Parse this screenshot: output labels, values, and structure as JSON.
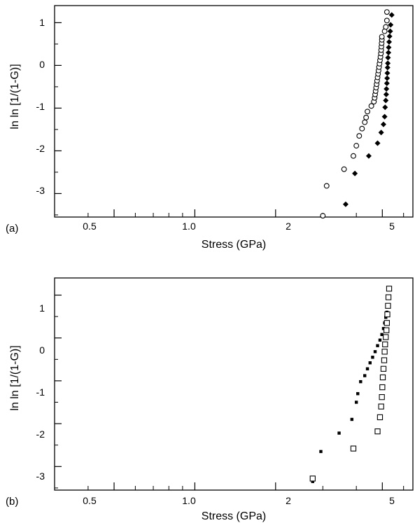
{
  "chart_data": [
    {
      "type": "scatter",
      "panel_label": "(a)",
      "xlabel": "Stress (GPa)",
      "ylabel": "ln ln [1/(1-G)]",
      "x_scale": "log",
      "xlim": [
        0.3,
        6.5
      ],
      "ylim": [
        -3.55,
        1.4
      ],
      "x_tick_labels": [
        "0.5",
        "1.0",
        "2",
        "5"
      ],
      "y_tick_labels": [
        "1",
        "0",
        "-1",
        "-2",
        "-3"
      ],
      "grid": false,
      "series": [
        {
          "marker": "open-circle",
          "color": "#000000",
          "points": [
            [
              3.0,
              -3.52
            ],
            [
              3.1,
              -2.82
            ],
            [
              3.6,
              -2.43
            ],
            [
              3.9,
              -2.12
            ],
            [
              4.0,
              -1.88
            ],
            [
              4.1,
              -1.65
            ],
            [
              4.2,
              -1.48
            ],
            [
              4.3,
              -1.33
            ],
            [
              4.35,
              -1.22
            ],
            [
              4.4,
              -1.08
            ],
            [
              4.55,
              -0.95
            ],
            [
              4.65,
              -0.85
            ],
            [
              4.68,
              -0.76
            ],
            [
              4.7,
              -0.68
            ],
            [
              4.72,
              -0.6
            ],
            [
              4.74,
              -0.52
            ],
            [
              4.76,
              -0.44
            ],
            [
              4.78,
              -0.36
            ],
            [
              4.8,
              -0.28
            ],
            [
              4.82,
              -0.2
            ],
            [
              4.84,
              -0.12
            ],
            [
              4.86,
              -0.04
            ],
            [
              4.88,
              0.04
            ],
            [
              4.9,
              0.12
            ],
            [
              4.92,
              0.2
            ],
            [
              4.94,
              0.28
            ],
            [
              4.95,
              0.36
            ],
            [
              4.96,
              0.44
            ],
            [
              4.97,
              0.52
            ],
            [
              4.98,
              0.6
            ],
            [
              4.98,
              0.67
            ],
            [
              5.1,
              0.8
            ],
            [
              5.15,
              0.9
            ],
            [
              5.2,
              1.05
            ],
            [
              5.2,
              1.25
            ]
          ]
        },
        {
          "marker": "filled-diamond",
          "color": "#000000",
          "points": [
            [
              3.65,
              -3.25
            ],
            [
              3.95,
              -2.53
            ],
            [
              4.45,
              -2.12
            ],
            [
              4.8,
              -1.82
            ],
            [
              4.95,
              -1.57
            ],
            [
              5.05,
              -1.38
            ],
            [
              5.1,
              -1.2
            ],
            [
              5.12,
              -0.98
            ],
            [
              5.15,
              -0.82
            ],
            [
              5.17,
              -0.68
            ],
            [
              5.18,
              -0.55
            ],
            [
              5.2,
              -0.42
            ],
            [
              5.21,
              -0.3
            ],
            [
              5.22,
              -0.18
            ],
            [
              5.23,
              -0.05
            ],
            [
              5.24,
              0.05
            ],
            [
              5.25,
              0.18
            ],
            [
              5.27,
              0.3
            ],
            [
              5.28,
              0.42
            ],
            [
              5.3,
              0.55
            ],
            [
              5.32,
              0.68
            ],
            [
              5.35,
              0.8
            ],
            [
              5.37,
              0.95
            ],
            [
              5.42,
              1.18
            ]
          ]
        }
      ]
    },
    {
      "type": "scatter",
      "panel_label": "(b)",
      "xlabel": "Stress (GPa)",
      "ylabel": "ln ln [1/(1-G)]",
      "x_scale": "log",
      "xlim": [
        0.3,
        6.5
      ],
      "ylim": [
        -3.55,
        1.4
      ],
      "x_tick_labels": [
        "0.5",
        "1.0",
        "2",
        "5"
      ],
      "y_tick_labels": [
        "1",
        "0",
        "-1",
        "-2",
        "-3"
      ],
      "grid": false,
      "series": [
        {
          "marker": "small-filled-square",
          "color": "#000000",
          "points": [
            [
              2.75,
              -3.35
            ],
            [
              2.95,
              -2.65
            ],
            [
              3.45,
              -2.22
            ],
            [
              3.85,
              -1.9
            ],
            [
              4.0,
              -1.5
            ],
            [
              4.05,
              -1.3
            ],
            [
              4.15,
              -1.02
            ],
            [
              4.3,
              -0.88
            ],
            [
              4.4,
              -0.72
            ],
            [
              4.5,
              -0.58
            ],
            [
              4.6,
              -0.45
            ],
            [
              4.7,
              -0.32
            ],
            [
              4.8,
              -0.18
            ],
            [
              4.9,
              -0.05
            ],
            [
              4.98,
              0.08
            ],
            [
              5.05,
              0.22
            ],
            [
              5.1,
              0.35
            ],
            [
              5.15,
              0.48
            ],
            [
              5.2,
              0.6
            ],
            [
              5.25,
              0.75
            ]
          ]
        },
        {
          "marker": "open-square",
          "color": "#000000",
          "points": [
            [
              2.75,
              -3.28
            ],
            [
              3.9,
              -2.58
            ],
            [
              4.8,
              -2.18
            ],
            [
              4.9,
              -1.85
            ],
            [
              4.95,
              -1.6
            ],
            [
              4.98,
              -1.38
            ],
            [
              5.0,
              -1.15
            ],
            [
              5.02,
              -0.92
            ],
            [
              5.05,
              -0.72
            ],
            [
              5.08,
              -0.52
            ],
            [
              5.1,
              -0.32
            ],
            [
              5.12,
              -0.15
            ],
            [
              5.15,
              0.02
            ],
            [
              5.18,
              0.18
            ],
            [
              5.2,
              0.35
            ],
            [
              5.22,
              0.55
            ],
            [
              5.25,
              0.75
            ],
            [
              5.27,
              0.95
            ],
            [
              5.3,
              1.15
            ]
          ]
        }
      ]
    }
  ]
}
